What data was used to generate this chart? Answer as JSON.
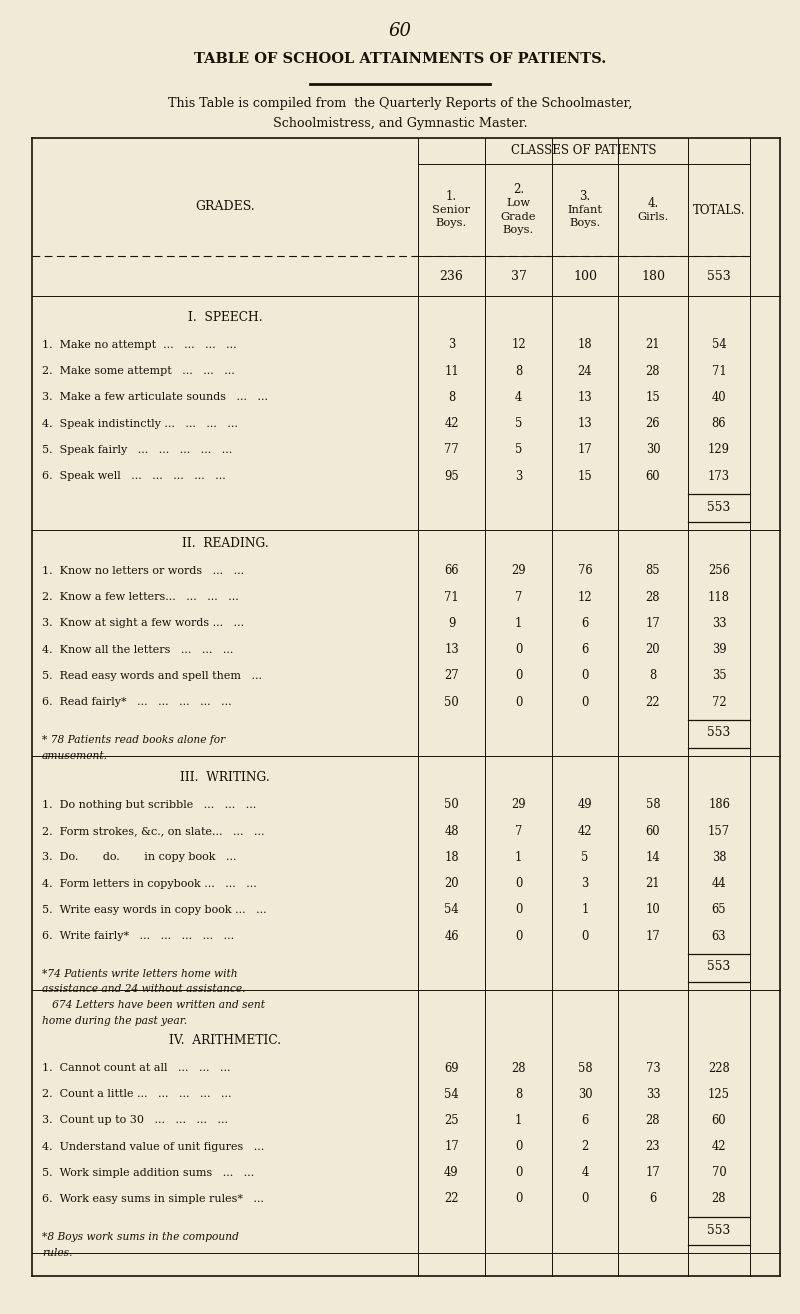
{
  "page_number": "60",
  "title": "TABLE OF SCHOOL ATTAINMENTS OF PATIENTS.",
  "subtitle1": "This Table is compiled from  the Quarterly Reports of the Schoolmaster,",
  "subtitle2": "Schoolmistress, and Gymnastic Master.",
  "col_header_main": "CLASSES OF PATIENTS",
  "grades_label": "GRADES.",
  "col1_label": [
    "1.",
    "Senior",
    "Boys."
  ],
  "col2_label": [
    "2.",
    "Low",
    "Grade",
    "Boys."
  ],
  "col3_label": [
    "3.",
    "Infant",
    "Boys."
  ],
  "col4_label": [
    "4.",
    "Girls."
  ],
  "col5_label": [
    "TOTALS."
  ],
  "col_counts": [
    "236",
    "37",
    "100",
    "180",
    "553"
  ],
  "bg_color": "#f0ead6",
  "text_color": "#1a1008",
  "sections": [
    {
      "title": "I.  SPEECH.",
      "rows": [
        [
          "1.  Make no attempt  ...   ...   ...   ...",
          "3",
          "12",
          "18",
          "21",
          "54"
        ],
        [
          "2.  Make some attempt   ...   ...   ...",
          "11",
          "8",
          "24",
          "28",
          "71"
        ],
        [
          "3.  Make a few articulate sounds   ...   ...",
          "8",
          "4",
          "13",
          "15",
          "40"
        ],
        [
          "4.  Speak indistinctly ...   ...   ...   ...",
          "42",
          "5",
          "13",
          "26",
          "86"
        ],
        [
          "5.  Speak fairly   ...   ...   ...   ...   ...",
          "77",
          "5",
          "17",
          "30",
          "129"
        ],
        [
          "6.  Speak well   ...   ...   ...   ...   ...",
          "95",
          "3",
          "15",
          "60",
          "173"
        ]
      ],
      "subtotal": "553",
      "footnote": null
    },
    {
      "title": "II.  READING.",
      "rows": [
        [
          "1.  Know no letters or words   ...   ...",
          "66",
          "29",
          "76",
          "85",
          "256"
        ],
        [
          "2.  Know a few letters...   ...   ...   ...",
          "71",
          "7",
          "12",
          "28",
          "118"
        ],
        [
          "3.  Know at sight a few words ...   ...",
          "9",
          "1",
          "6",
          "17",
          "33"
        ],
        [
          "4.  Know all the letters   ...   ...   ...",
          "13",
          "0",
          "6",
          "20",
          "39"
        ],
        [
          "5.  Read easy words and spell them   ...",
          "27",
          "0",
          "0",
          "8",
          "35"
        ],
        [
          "6.  Read fairly*   ...   ...   ...   ...   ...",
          "50",
          "0",
          "0",
          "22",
          "72"
        ]
      ],
      "subtotal": "553",
      "footnote": "* 78 Patients read books alone for\namusement."
    },
    {
      "title": "III.  WRITING.",
      "rows": [
        [
          "1.  Do nothing but scribble   ...   ...   ...",
          "50",
          "29",
          "49",
          "58",
          "186"
        ],
        [
          "2.  Form strokes, &c., on slate...   ...   ...",
          "48",
          "7",
          "42",
          "60",
          "157"
        ],
        [
          "3.  Do.       do.       in copy book   ...",
          "18",
          "1",
          "5",
          "14",
          "38"
        ],
        [
          "4.  Form letters in copybook ...   ...   ...",
          "20",
          "0",
          "3",
          "21",
          "44"
        ],
        [
          "5.  Write easy words in copy book ...   ...",
          "54",
          "0",
          "1",
          "10",
          "65"
        ],
        [
          "6.  Write fairly*   ...   ...   ...   ...   ...",
          "46",
          "0",
          "0",
          "17",
          "63"
        ]
      ],
      "subtotal": "553",
      "footnote": "*74 Patients write letters home with\nassistance and 24 without assistance.\n   674 Letters have been written and sent\nhome during the past year."
    },
    {
      "title": "IV.  ARITHMETIC.",
      "rows": [
        [
          "1.  Cannot count at all   ...   ...   ...",
          "69",
          "28",
          "58",
          "73",
          "228"
        ],
        [
          "2.  Count a little ...   ...   ...   ...   ...",
          "54",
          "8",
          "30",
          "33",
          "125"
        ],
        [
          "3.  Count up to 30   ...   ...   ...   ...",
          "25",
          "1",
          "6",
          "28",
          "60"
        ],
        [
          "4.  Understand value of unit figures   ...",
          "17",
          "0",
          "2",
          "23",
          "42"
        ],
        [
          "5.  Work simple addition sums   ...   ...",
          "49",
          "0",
          "4",
          "17",
          "70"
        ],
        [
          "6.  Work easy sums in simple rules*   ...",
          "22",
          "0",
          "0",
          "6",
          "28"
        ]
      ],
      "subtotal": "553",
      "footnote": "*8 Boys work sums in the compound\nrules."
    }
  ]
}
